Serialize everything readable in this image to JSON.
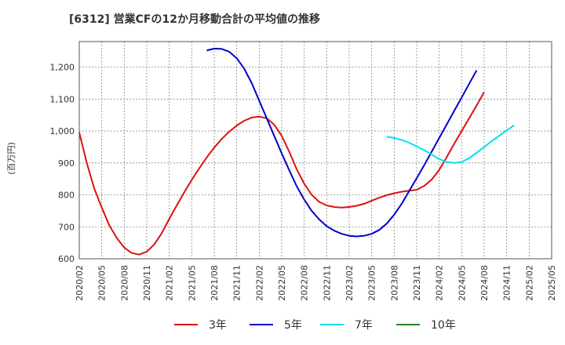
{
  "chart_data": {
    "type": "line",
    "title": "[6312]  営業CFの12か月移動合計の平均値の推移",
    "ylabel": "(百万円)",
    "xlabel": "",
    "ylim": [
      600,
      1280
    ],
    "xlim": [
      "2020-02",
      "2025-05"
    ],
    "y_ticks": [
      600,
      700,
      800,
      900,
      1000,
      1100,
      1200
    ],
    "y_tick_labels": [
      "600",
      "700",
      "800",
      "900",
      "1,000",
      "1,100",
      "1,200"
    ],
    "x_ticks": [
      "2020/02",
      "2020/05",
      "2020/08",
      "2020/11",
      "2021/02",
      "2021/05",
      "2021/08",
      "2021/11",
      "2022/02",
      "2022/05",
      "2022/08",
      "2022/11",
      "2023/02",
      "2023/05",
      "2023/08",
      "2023/11",
      "2024/02",
      "2024/05",
      "2024/08",
      "2024/11",
      "2025/02",
      "2025/05"
    ],
    "grid": true,
    "legend_position": "bottom",
    "series": [
      {
        "name": "3年",
        "color": "#dd1111",
        "start": "2020-02",
        "values": [
          995,
          900,
          820,
          760,
          705,
          665,
          635,
          618,
          613,
          622,
          645,
          680,
          725,
          767,
          808,
          847,
          883,
          917,
          948,
          975,
          998,
          1017,
          1032,
          1042,
          1045,
          1040,
          1020,
          985,
          935,
          880,
          835,
          800,
          778,
          767,
          762,
          760,
          762,
          766,
          772,
          782,
          791,
          799,
          805,
          810,
          813,
          816,
          828,
          848,
          878,
          918,
          960,
          1000,
          1040,
          1080,
          1122
        ]
      },
      {
        "name": "5年",
        "color": "#0000cc",
        "start": "2021-07",
        "values": [
          1252,
          1258,
          1257,
          1248,
          1228,
          1195,
          1150,
          1095,
          1040,
          985,
          930,
          877,
          827,
          785,
          750,
          723,
          702,
          688,
          678,
          672,
          670,
          672,
          678,
          690,
          710,
          738,
          772,
          812,
          852,
          893,
          935,
          978,
          1020,
          1063,
          1105,
          1148,
          1190
        ]
      },
      {
        "name": "7年",
        "color": "#00e0f0",
        "start": "2023-07",
        "values": [
          982,
          978,
          972,
          963,
          952,
          940,
          926,
          912,
          903,
          900,
          903,
          915,
          932,
          950,
          968,
          985,
          1002,
          1018
        ]
      },
      {
        "name": "10年",
        "color": "#228822",
        "start": "2025-02",
        "values": []
      }
    ]
  }
}
